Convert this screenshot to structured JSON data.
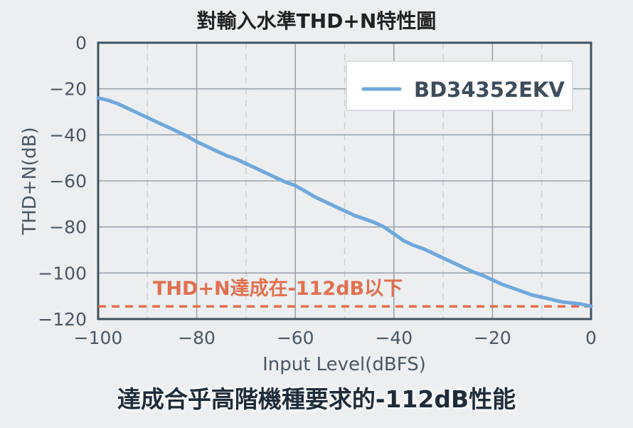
{
  "chart_data": {
    "type": "line",
    "title": "對輸入水準THD+N特性圖",
    "xlabel": "Input Level(dBFS)",
    "ylabel": "THD+N(dB)",
    "xlim": [
      -100,
      0
    ],
    "ylim": [
      -120,
      0
    ],
    "xticks": [
      -100,
      -80,
      -60,
      -40,
      -20,
      0
    ],
    "yticks": [
      0,
      -20,
      -40,
      -60,
      -80,
      -100,
      -120
    ],
    "xtick_labels": [
      "−100",
      "−80",
      "−60",
      "−40",
      "−20",
      "0"
    ],
    "ytick_labels": [
      "0",
      "−20",
      "−40",
      "−60",
      "−80",
      "−100",
      "−120"
    ],
    "grid": true,
    "legend": "top-right",
    "series": [
      {
        "name": "BD34352EKV",
        "color": "#6fa8dc",
        "x": [
          -100,
          -98,
          -96,
          -94,
          -92,
          -90,
          -88,
          -86,
          -84,
          -82,
          -80,
          -78,
          -76,
          -74,
          -72,
          -70,
          -68,
          -66,
          -64,
          -62,
          -60,
          -58,
          -56,
          -54,
          -52,
          -50,
          -48,
          -46,
          -44,
          -42,
          -40,
          -38,
          -36,
          -34,
          -32,
          -30,
          -28,
          -26,
          -24,
          -22,
          -20,
          -18,
          -16,
          -14,
          -12,
          -10,
          -8,
          -6,
          -4,
          -2,
          0
        ],
        "y": [
          -24,
          -25,
          -26.5,
          -28.5,
          -30.5,
          -32.5,
          -34.5,
          -36.5,
          -38.5,
          -40.5,
          -43,
          -45,
          -47,
          -49,
          -50.5,
          -52.5,
          -54.5,
          -56.5,
          -58.5,
          -60.5,
          -62,
          -64.5,
          -67,
          -69,
          -71,
          -73,
          -75,
          -76.5,
          -78,
          -80,
          -83,
          -86,
          -88,
          -89.5,
          -91.5,
          -93.5,
          -95.5,
          -97.5,
          -99.5,
          -101,
          -103,
          -105,
          -106.5,
          -108,
          -109.5,
          -110.5,
          -111.5,
          -112.5,
          -113,
          -113.5,
          -114.5
        ]
      }
    ],
    "threshold": {
      "y": -114.5,
      "color": "#e07050",
      "label": "THD+N達成在-112dB以下"
    }
  },
  "caption": "達成合乎高階機種要求的-112dB性能"
}
